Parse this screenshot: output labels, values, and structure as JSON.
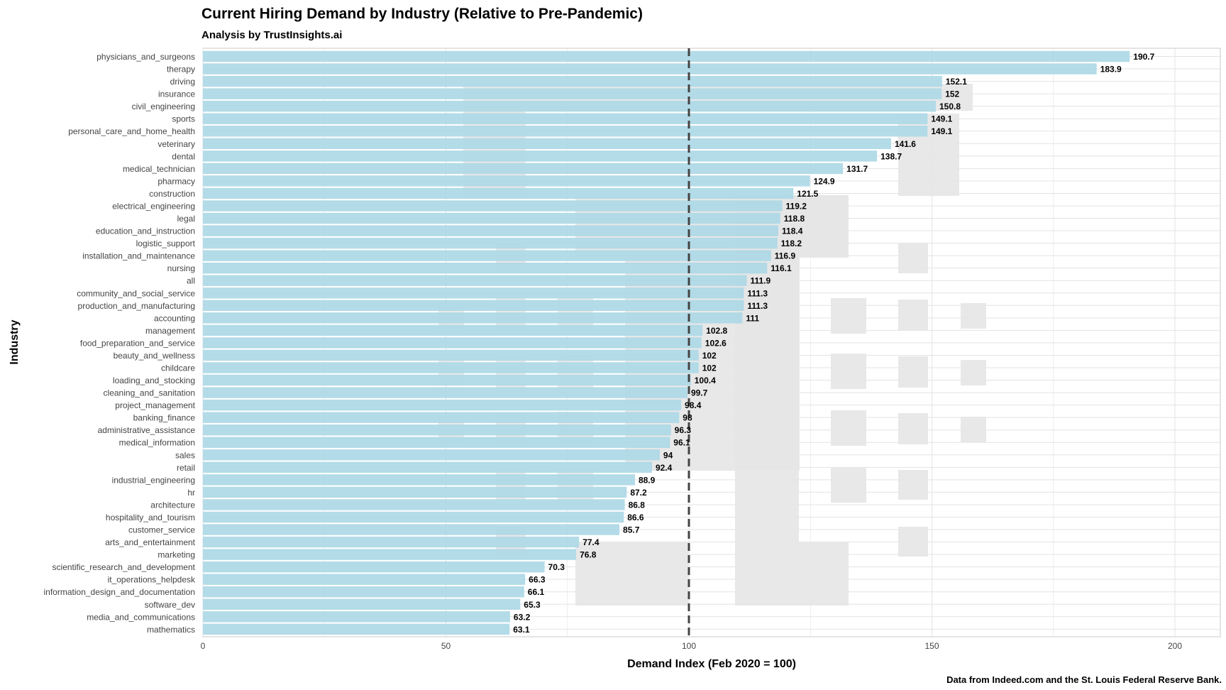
{
  "colors": {
    "bar": "#add8e6",
    "grid": "#e3e3e3",
    "ref_line": "#444444",
    "watermark": "#e6e6e6"
  },
  "chart_data": {
    "type": "bar",
    "orientation": "horizontal",
    "title": "Current Hiring Demand by Industry (Relative to Pre-Pandemic)",
    "subtitle": "Analysis by TrustInsights.ai",
    "xlabel": "Demand Index (Feb 2020 = 100)",
    "ylabel": "Industry",
    "caption": "Data from Indeed.com and the St. Louis Federal Reserve Bank.",
    "xlim": [
      0,
      210
    ],
    "xticks": [
      0,
      50,
      100,
      150,
      200
    ],
    "reference_line": 100,
    "grid": true,
    "categories": [
      "physicians_and_surgeons",
      "therapy",
      "driving",
      "insurance",
      "civil_engineering",
      "sports",
      "personal_care_and_home_health",
      "veterinary",
      "dental",
      "medical_technician",
      "pharmacy",
      "construction",
      "electrical_engineering",
      "legal",
      "education_and_instruction",
      "logistic_support",
      "installation_and_maintenance",
      "nursing",
      "all",
      "community_and_social_service",
      "production_and_manufacturing",
      "accounting",
      "management",
      "food_preparation_and_service",
      "beauty_and_wellness",
      "childcare",
      "loading_and_stocking",
      "cleaning_and_sanitation",
      "project_management",
      "banking_finance",
      "administrative_assistance",
      "medical_information",
      "sales",
      "retail",
      "industrial_engineering",
      "hr",
      "architecture",
      "hospitality_and_tourism",
      "customer_service",
      "arts_and_entertainment",
      "marketing",
      "scientific_research_and_development",
      "it_operations_helpdesk",
      "information_design_and_documentation",
      "software_dev",
      "media_and_communications",
      "mathematics"
    ],
    "values": [
      190.7,
      183.9,
      152.1,
      152,
      150.8,
      149.1,
      149.1,
      141.6,
      138.7,
      131.7,
      124.9,
      121.5,
      119.2,
      118.8,
      118.4,
      118.2,
      116.9,
      116.1,
      111.9,
      111.3,
      111.3,
      111,
      102.8,
      102.6,
      102,
      102,
      100.4,
      99.7,
      98.4,
      98,
      96.3,
      96.1,
      94,
      92.4,
      88.9,
      87.2,
      86.8,
      86.6,
      85.7,
      77.4,
      76.8,
      70.3,
      66.3,
      66.1,
      65.3,
      63.2,
      63.1
    ]
  }
}
